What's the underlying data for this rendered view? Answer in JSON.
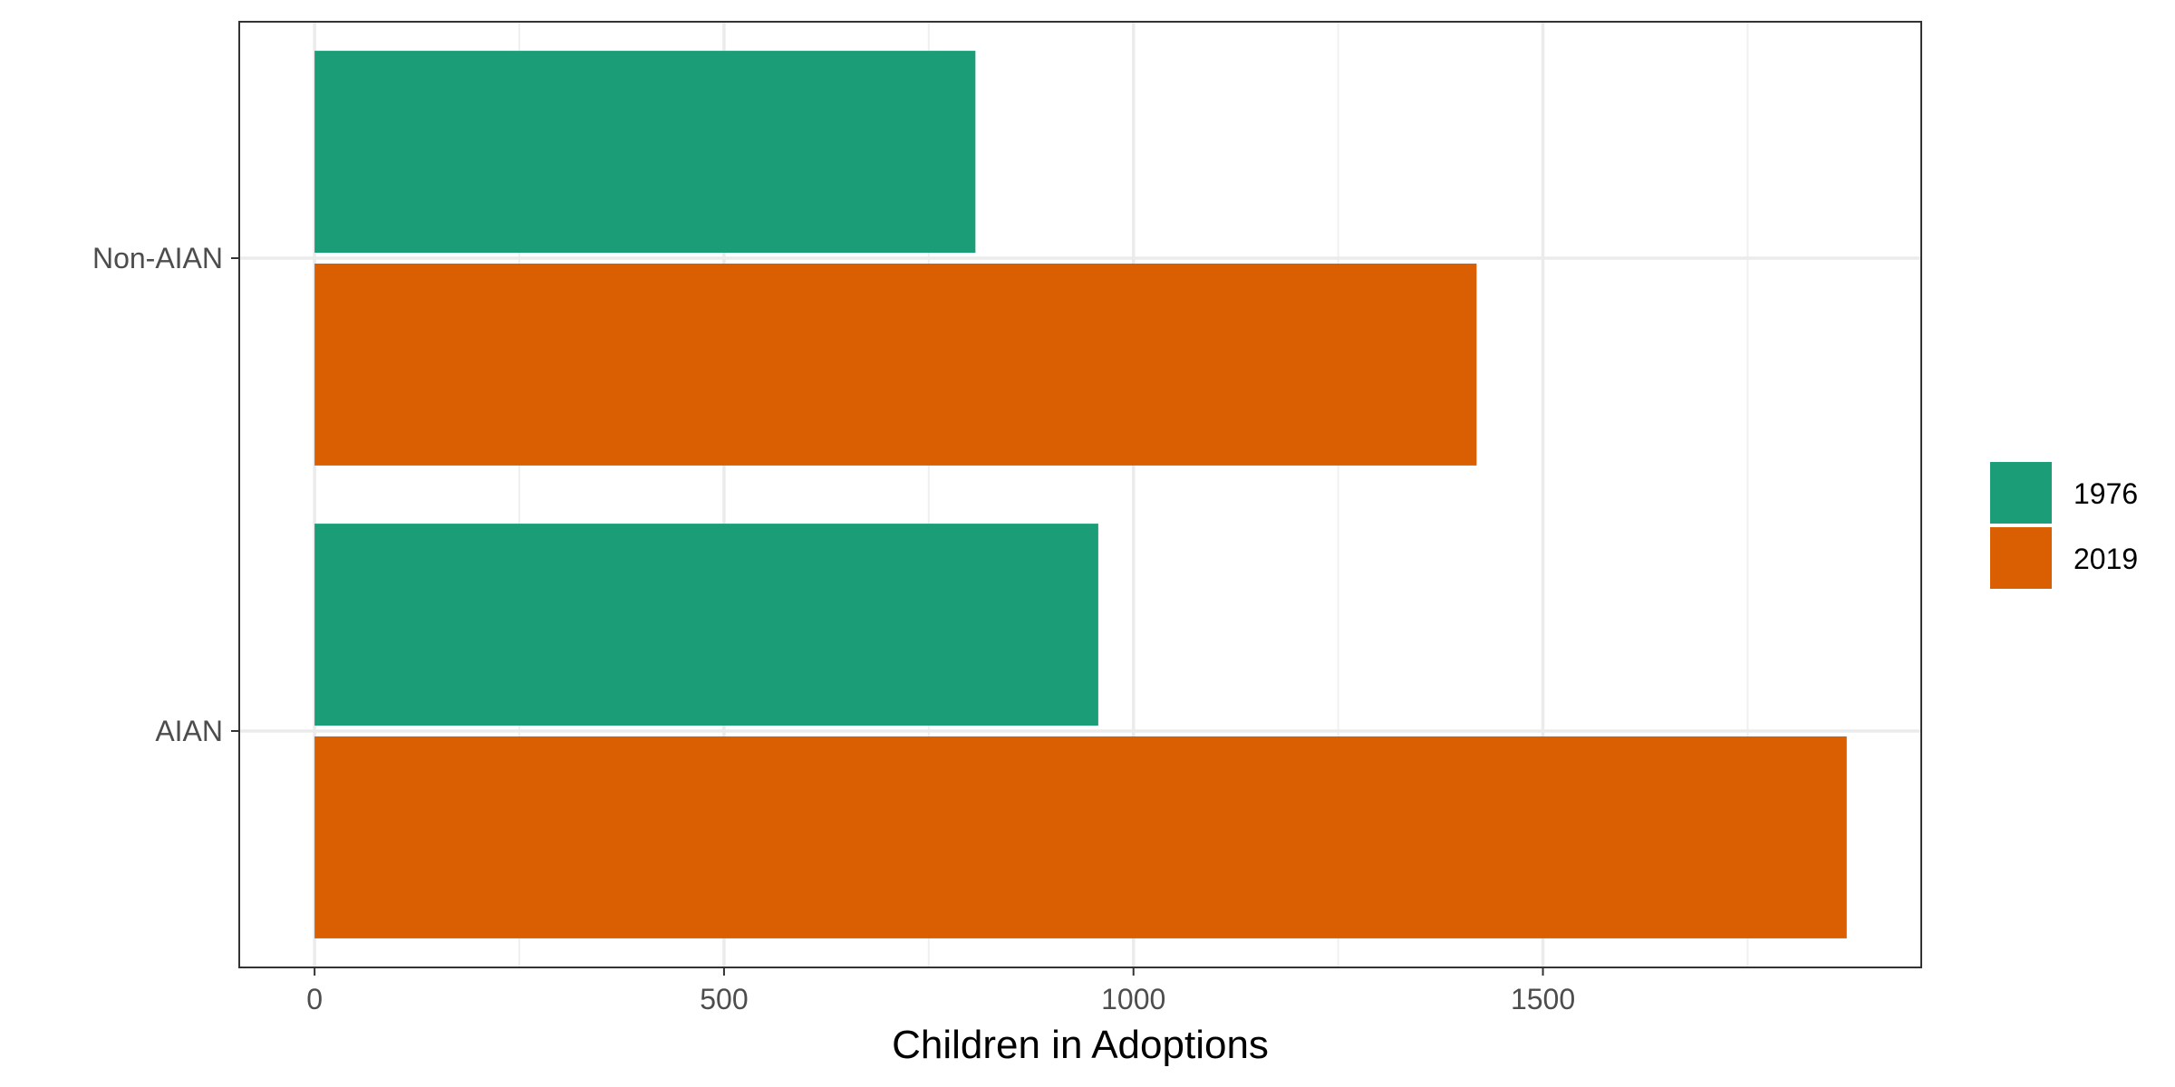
{
  "chart_data": {
    "type": "bar",
    "orientation": "horizontal",
    "categories": [
      "AIAN",
      "Non-AIAN"
    ],
    "series": [
      {
        "name": "1976",
        "color": "#1b9e77",
        "values": [
          957,
          807
        ]
      },
      {
        "name": "2019",
        "color": "#d95f02",
        "values": [
          1871,
          1419
        ]
      }
    ],
    "xlabel": "Children in Adoptions",
    "ylabel": "",
    "x_ticks": [
      0,
      500,
      1000,
      1500
    ],
    "xlim": [
      -92,
      1962
    ],
    "grid": true,
    "legend_position": "right"
  }
}
